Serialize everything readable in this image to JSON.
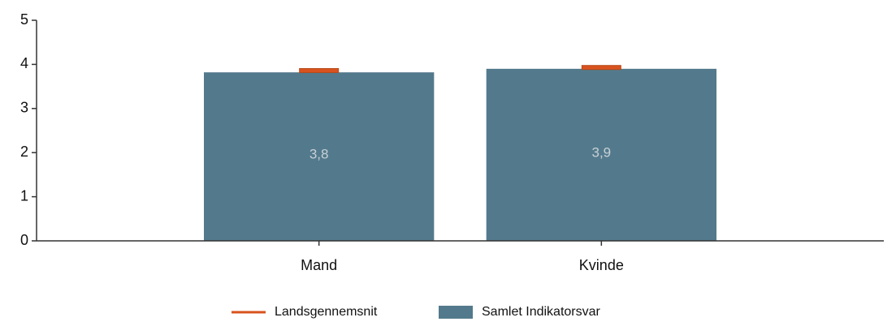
{
  "chart_data": {
    "type": "bar",
    "categories": [
      "Mand",
      "Kvinde"
    ],
    "series": [
      {
        "name": "Samlet Indikatorsvar",
        "color": "#537a8c",
        "values": [
          3.82,
          3.9
        ],
        "value_labels": [
          "3,8",
          "3,9"
        ]
      },
      {
        "name": "Landsgennemsnit",
        "color": "#d9531e",
        "values": [
          3.86,
          3.93
        ]
      }
    ],
    "ylim": [
      0,
      5
    ],
    "yticks": [
      0,
      1,
      2,
      3,
      4,
      5
    ]
  }
}
